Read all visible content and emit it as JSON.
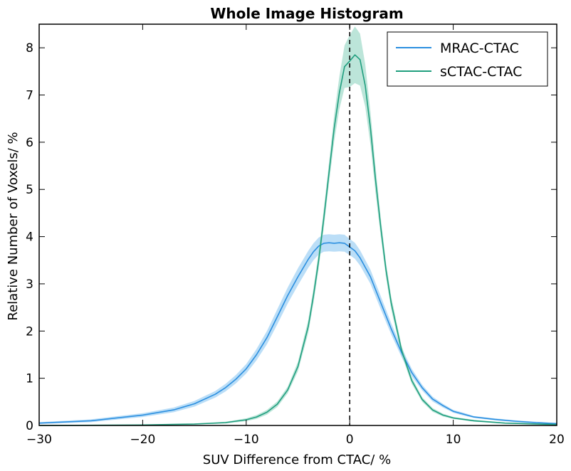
{
  "chart_data": {
    "type": "line",
    "title": "Whole Image Histogram",
    "xlabel": "SUV Difference from CTAC/ %",
    "ylabel": "Relative Number of Voxels/ %",
    "xlim": [
      -30,
      20
    ],
    "ylim": [
      0,
      8.5
    ],
    "xticks": [
      -30,
      -20,
      -10,
      0,
      10,
      20
    ],
    "xtick_labels": [
      "−30",
      "−20",
      "−10",
      "0",
      "10",
      "20"
    ],
    "yticks": [
      0,
      1,
      2,
      3,
      4,
      5,
      6,
      7,
      8
    ],
    "ytick_labels": [
      "0",
      "1",
      "2",
      "3",
      "4",
      "5",
      "6",
      "7",
      "8"
    ],
    "grid": false,
    "legend_position": "top-right",
    "reference_line": {
      "x": 0,
      "style": "dashed",
      "color": "#000000"
    },
    "series": [
      {
        "name": "MRAC-CTAC",
        "color": "#2b8fe0",
        "band_color": "#8ec8f2",
        "x": [
          -30,
          -25,
          -20,
          -17,
          -15,
          -13,
          -12,
          -11,
          -10,
          -9,
          -8,
          -7,
          -6,
          -5,
          -4,
          -3.5,
          -3,
          -2.5,
          -2,
          -1.5,
          -1,
          -0.5,
          0,
          0.5,
          1,
          2,
          3,
          4,
          5,
          6,
          7,
          8,
          9,
          10,
          11,
          12,
          14,
          16,
          18,
          20
        ],
        "y": [
          0.05,
          0.1,
          0.22,
          0.33,
          0.46,
          0.66,
          0.8,
          0.98,
          1.2,
          1.5,
          1.86,
          2.3,
          2.75,
          3.15,
          3.52,
          3.68,
          3.8,
          3.86,
          3.87,
          3.86,
          3.87,
          3.86,
          3.78,
          3.7,
          3.55,
          3.15,
          2.6,
          2.05,
          1.55,
          1.12,
          0.8,
          0.56,
          0.42,
          0.3,
          0.24,
          0.18,
          0.13,
          0.09,
          0.06,
          0.04
        ],
        "band_half_width": [
          0.02,
          0.03,
          0.04,
          0.05,
          0.06,
          0.07,
          0.08,
          0.09,
          0.1,
          0.12,
          0.14,
          0.16,
          0.17,
          0.18,
          0.18,
          0.18,
          0.18,
          0.18,
          0.18,
          0.18,
          0.18,
          0.18,
          0.17,
          0.17,
          0.16,
          0.15,
          0.14,
          0.12,
          0.1,
          0.08,
          0.06,
          0.05,
          0.04,
          0.03,
          0.03,
          0.02,
          0.02,
          0.02,
          0.02,
          0.01
        ]
      },
      {
        "name": "sCTAC-CTAC",
        "color": "#1f9e7e",
        "band_color": "#8fd3c0",
        "x": [
          -30,
          -20,
          -15,
          -12,
          -10,
          -9,
          -8,
          -7,
          -6,
          -5,
          -4,
          -3.5,
          -3,
          -2.5,
          -2,
          -1.5,
          -1,
          -0.5,
          0,
          0.5,
          1,
          1.5,
          2,
          2.5,
          3,
          3.5,
          4,
          5,
          6,
          7,
          8,
          9,
          10,
          12,
          15,
          20
        ],
        "y": [
          0.0,
          0.01,
          0.03,
          0.06,
          0.12,
          0.18,
          0.28,
          0.45,
          0.75,
          1.25,
          2.1,
          2.75,
          3.5,
          4.4,
          5.35,
          6.3,
          7.05,
          7.6,
          7.72,
          7.85,
          7.75,
          7.2,
          6.3,
          5.2,
          4.2,
          3.3,
          2.6,
          1.6,
          0.95,
          0.55,
          0.33,
          0.22,
          0.16,
          0.1,
          0.05,
          0.02
        ],
        "band_half_width": [
          0.01,
          0.01,
          0.01,
          0.02,
          0.03,
          0.04,
          0.05,
          0.06,
          0.07,
          0.1,
          0.14,
          0.16,
          0.18,
          0.2,
          0.22,
          0.28,
          0.35,
          0.45,
          0.55,
          0.6,
          0.55,
          0.45,
          0.35,
          0.28,
          0.2,
          0.16,
          0.14,
          0.1,
          0.07,
          0.05,
          0.04,
          0.03,
          0.02,
          0.02,
          0.01,
          0.01
        ]
      }
    ]
  }
}
